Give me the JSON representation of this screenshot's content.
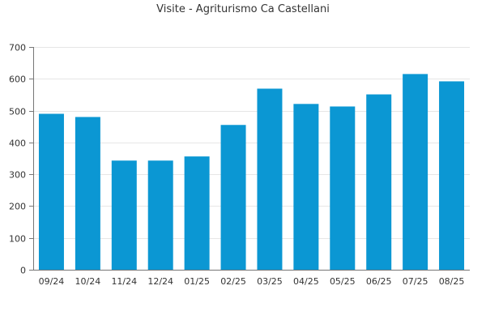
{
  "chart_data": {
    "type": "bar",
    "title": "Visite - Agriturismo Ca Castellani",
    "xlabel": "",
    "ylabel": "",
    "categories": [
      "09/24",
      "10/24",
      "11/24",
      "12/24",
      "01/25",
      "02/25",
      "03/25",
      "04/25",
      "05/25",
      "06/25",
      "07/25",
      "08/25"
    ],
    "values": [
      490,
      480,
      343,
      343,
      356,
      455,
      569,
      521,
      513,
      551,
      615,
      592
    ],
    "ylim": [
      0,
      700
    ],
    "yticks": [
      0,
      100,
      200,
      300,
      400,
      500,
      600,
      700
    ],
    "grid": true,
    "legend": "none",
    "bar_color": "#0b97d3",
    "grid_color": "#e6e6e6",
    "axis_color": "#777777"
  }
}
